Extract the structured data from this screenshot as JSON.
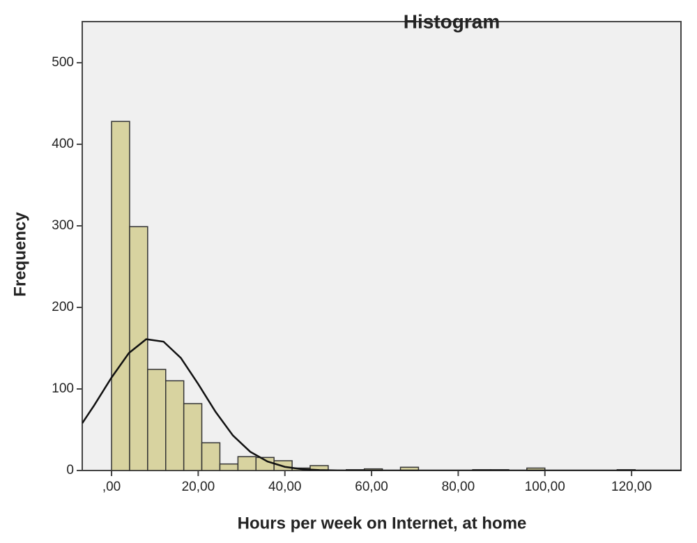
{
  "chart_data": {
    "type": "histogram",
    "title": "Histogram",
    "xlabel": "Hours per week on Internet, at home",
    "ylabel": "Frequency",
    "bins": [
      0,
      4.17,
      8.33,
      12.5,
      16.67,
      20.83,
      25,
      29.17,
      33.33,
      37.5,
      41.67,
      45.83,
      50,
      54.17,
      58.33,
      62.5,
      66.67,
      70.83,
      75,
      79.17,
      83.33,
      87.5,
      91.67,
      95.83,
      100,
      104.17,
      108.33,
      112.5,
      116.67,
      120.83
    ],
    "values": [
      428,
      299,
      124,
      110,
      82,
      34,
      8,
      17,
      16,
      12,
      3,
      6,
      0,
      1,
      2,
      0,
      4,
      0,
      0,
      0,
      1,
      1,
      0,
      3,
      0,
      0,
      0,
      0,
      1
    ],
    "color": "#d8d3a0",
    "curve": {
      "color": "#111111",
      "x": [
        -6.76,
        -4,
        0,
        4,
        8,
        12,
        16,
        20,
        24,
        28,
        32,
        36,
        40,
        44,
        48,
        52,
        60,
        80,
        100,
        120,
        131.4
      ],
      "values": [
        58,
        80,
        114,
        144,
        161,
        158,
        138,
        106,
        72,
        43,
        23,
        11,
        4.5,
        1.6,
        0.5,
        0.1,
        0,
        0,
        0,
        0,
        0
      ]
    },
    "xlim": [
      -6.76,
      131.4
    ],
    "ylim": [
      0,
      550.4
    ],
    "xticks": [
      {
        "value": 0,
        "label": ",00"
      },
      {
        "value": 20,
        "label": "20,00"
      },
      {
        "value": 40,
        "label": "40,00"
      },
      {
        "value": 60,
        "label": "60,00"
      },
      {
        "value": 80,
        "label": "80,00"
      },
      {
        "value": 100,
        "label": "100,00"
      },
      {
        "value": 120,
        "label": "120,00"
      }
    ],
    "yticks": [
      0,
      100,
      200,
      300,
      400,
      500
    ]
  }
}
